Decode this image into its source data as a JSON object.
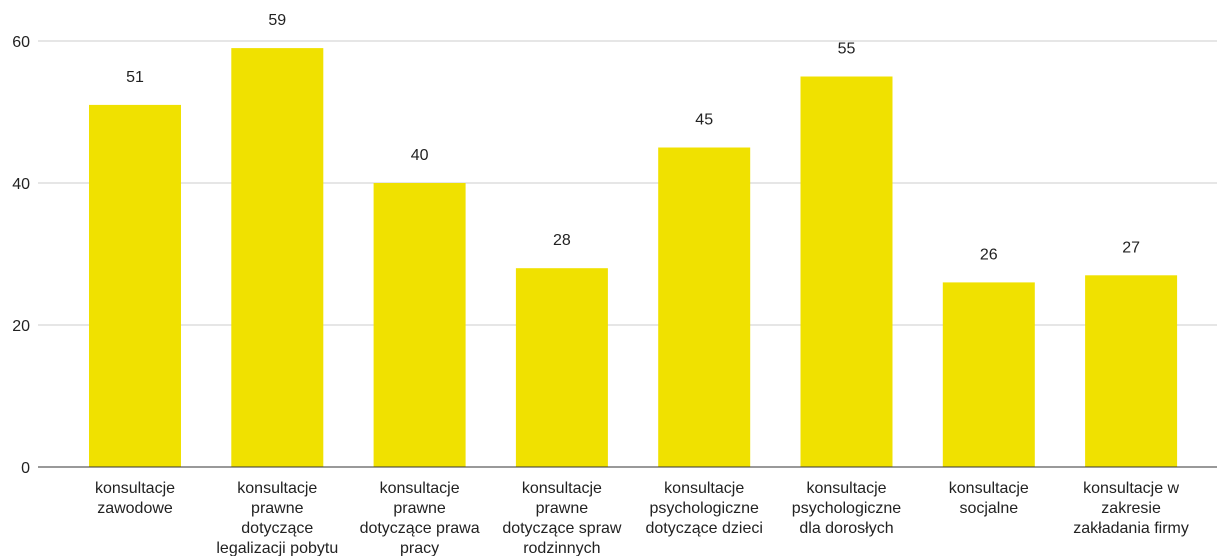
{
  "chart_data": {
    "type": "bar",
    "categories": [
      [
        "konsultacje",
        "zawodowe"
      ],
      [
        "konsultacje",
        "prawne",
        "dotyczące",
        "legalizacji pobytu"
      ],
      [
        "konsultacje",
        "prawne",
        "dotyczące prawa",
        "pracy"
      ],
      [
        "konsultacje",
        "prawne",
        "dotyczące spraw",
        "rodzinnych"
      ],
      [
        "konsultacje",
        "psychologiczne",
        "dotyczące dzieci"
      ],
      [
        "konsultacje",
        "psychologiczne",
        "dla dorosłych"
      ],
      [
        "konsultacje",
        "socjalne"
      ],
      [
        "konsultacje w",
        "zakresie",
        "zakładania firmy"
      ]
    ],
    "values": [
      51,
      59,
      40,
      28,
      45,
      55,
      26,
      27
    ],
    "data_labels": [
      "51",
      "59",
      "40",
      "28",
      "45",
      "55",
      "26",
      "27"
    ],
    "yticks": [
      "0",
      "20",
      "40",
      "60"
    ],
    "ylim": [
      0,
      60
    ],
    "grid": true,
    "legend": "none",
    "colors": {
      "bar": "#f0e100",
      "grid": "#cccccc",
      "axis": "#333333",
      "text": "#222222"
    }
  }
}
